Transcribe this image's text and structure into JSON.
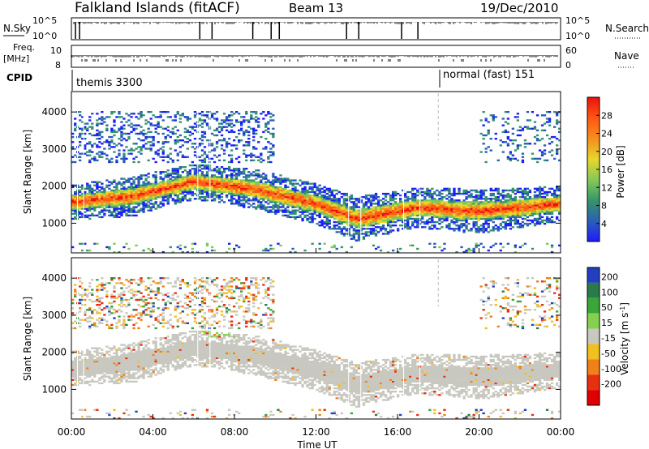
{
  "header": {
    "station": "Falkland Islands (fitACF)",
    "beam": "Beam 13",
    "date": "19/Dec/2010"
  },
  "strips": {
    "nsky_label": "N.Sky",
    "nsky_ticks": [
      "10^5",
      "10^0"
    ],
    "nsearch_label": "N.Search",
    "nsearch_ticks": [
      "10^5",
      "10^0"
    ],
    "freq_label_1": "Freq.",
    "freq_label_2": "[MHz]",
    "freq_ticks": [
      "10",
      "8"
    ],
    "nave_label": "Nave",
    "nave_ticks": [
      "60",
      "0"
    ],
    "cpid_label": "CPID",
    "cpid_segments": [
      {
        "label": "themis 3300",
        "start_hour": 0
      },
      {
        "label": "normal (fast) 151",
        "start_hour": 18.0
      }
    ],
    "nsky_gaps_hours": [
      0.2,
      0.4,
      6.3,
      6.9,
      8.9,
      9.8,
      10.2,
      13.5,
      14.1,
      16.2,
      17.0
    ]
  },
  "chart_data": [
    {
      "type": "heatmap",
      "panel": "power",
      "ylabel": "Slant Range [km]",
      "yticks": [
        1000,
        2000,
        3000,
        4000
      ],
      "ylim": [
        200,
        4550
      ],
      "xlim": [
        0,
        24
      ],
      "colorbar": {
        "label": "Power [dB]",
        "ticks": [
          "4",
          "8",
          "12",
          "16",
          "20",
          "24",
          "28"
        ],
        "colors": [
          "#1c1cff",
          "#2a5fb8",
          "#35936a",
          "#7fc85a",
          "#e8d62a",
          "#f49020",
          "#ff5a12",
          "#ee1010"
        ]
      },
      "bands": [
        {
          "hour": 0,
          "center_km": 1550,
          "width_km": 400,
          "level": 28
        },
        {
          "hour": 3,
          "center_km": 1700,
          "width_km": 450,
          "level": 28
        },
        {
          "hour": 6,
          "center_km": 2100,
          "width_km": 400,
          "level": 22
        },
        {
          "hour": 9,
          "center_km": 1900,
          "width_km": 450,
          "level": 24
        },
        {
          "hour": 12,
          "center_km": 1500,
          "width_km": 450,
          "level": 26
        },
        {
          "hour": 14,
          "center_km": 1100,
          "width_km": 500,
          "level": 28
        },
        {
          "hour": 17,
          "center_km": 1400,
          "width_km": 450,
          "level": 24
        },
        {
          "hour": 20,
          "center_km": 1300,
          "width_km": 500,
          "level": 26
        },
        {
          "hour": 24,
          "center_km": 1500,
          "width_km": 400,
          "level": 28
        }
      ]
    },
    {
      "type": "heatmap",
      "panel": "velocity",
      "ylabel": "Slant Range [km]",
      "yticks": [
        1000,
        2000,
        3000,
        4000
      ],
      "ylim": [
        200,
        4550
      ],
      "xlim": [
        0,
        24
      ],
      "xlabel": "Time UT",
      "xticks": [
        "00:00",
        "04:00",
        "08:00",
        "12:00",
        "16:00",
        "20:00",
        "00:00"
      ],
      "colorbar": {
        "label": "Velocity [m s^-1]",
        "ticks": [
          "200",
          "100",
          "50",
          "15",
          "-15",
          "-50",
          "-100",
          "-200"
        ],
        "colors": [
          "#2040c0",
          "#2a7a4a",
          "#3aa63a",
          "#86d050",
          "#c8c8c0",
          "#f0c020",
          "#f08018",
          "#e83010",
          "#e00000"
        ]
      },
      "ground_scatter_color": "#c8c8c0"
    }
  ]
}
